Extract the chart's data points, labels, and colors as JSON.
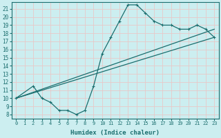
{
  "xlabel": "Humidex (Indice chaleur)",
  "bg_color": "#cceef0",
  "grid_color": "#e8c8c8",
  "line_color": "#1a6e6e",
  "xlim": [
    -0.5,
    23.5
  ],
  "ylim": [
    7.5,
    21.8
  ],
  "xticks": [
    0,
    1,
    2,
    3,
    4,
    5,
    6,
    7,
    8,
    9,
    10,
    11,
    12,
    13,
    14,
    15,
    16,
    17,
    18,
    19,
    20,
    21,
    22,
    23
  ],
  "yticks": [
    8,
    9,
    10,
    11,
    12,
    13,
    14,
    15,
    16,
    17,
    18,
    19,
    20,
    21
  ],
  "marker_x": [
    0,
    2,
    3,
    4,
    5,
    6,
    7,
    8,
    9,
    10,
    11,
    12,
    13,
    14,
    15,
    16,
    17,
    18,
    19,
    20,
    21,
    22,
    23
  ],
  "marker_y": [
    10,
    11.5,
    10,
    9.5,
    8.5,
    8.5,
    8,
    8.5,
    11.5,
    15.5,
    17.5,
    19.5,
    21.5,
    21.5,
    20.5,
    19.5,
    19,
    19,
    18.5,
    18.5,
    19,
    18.5,
    17.5
  ],
  "line2_x": [
    0,
    23
  ],
  "line2_y": [
    10,
    18.5
  ],
  "line3_x": [
    0,
    23
  ],
  "line3_y": [
    10,
    17.5
  ]
}
